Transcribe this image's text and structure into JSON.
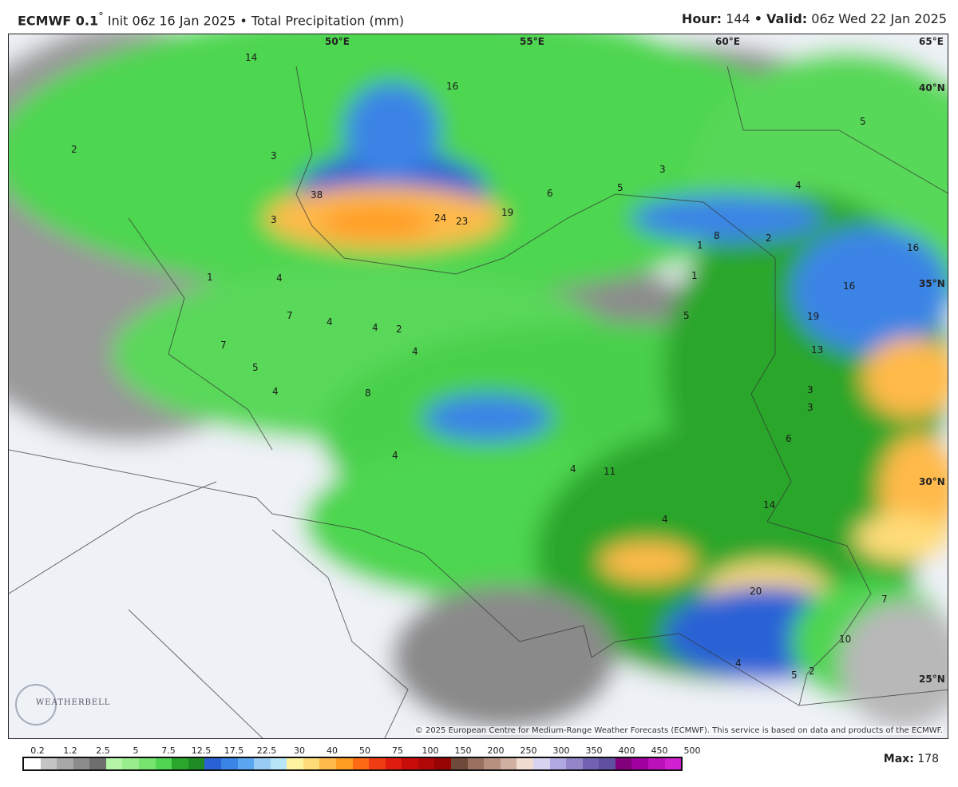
{
  "header": {
    "model": "ECMWF 0.1",
    "degree": "°",
    "init": "Init 06z 16 Jan 2025",
    "sep": "•",
    "product": "Total Precipitation (mm)",
    "hour_label": "Hour:",
    "hour": "144",
    "valid_label": "Valid:",
    "valid": "06z Wed 22 Jan 2025"
  },
  "map": {
    "lon_labels": [
      "50°E",
      "55°E",
      "60°E",
      "65°E"
    ],
    "lat_labels": [
      "40°N",
      "35°N",
      "30°N",
      "25°N"
    ],
    "values": [
      "2",
      "14",
      "3",
      "16",
      "4",
      "3",
      "38",
      "24",
      "23",
      "19",
      "6",
      "5",
      "3",
      "4",
      "8",
      "5",
      "1",
      "4",
      "7",
      "4",
      "2",
      "1",
      "7",
      "4",
      "8",
      "4",
      "5",
      "4",
      "2",
      "4",
      "11",
      "4",
      "6",
      "14",
      "3",
      "16",
      "16",
      "19",
      "13",
      "3",
      "5",
      "20",
      "10",
      "7",
      "4",
      "5",
      "2",
      "1"
    ],
    "copyright": "© 2025 European Centre for Medium-Range Weather Forecasts (ECMWF). This service is based on data and products of the ECMWF.",
    "logo": "WEATHERBELL"
  },
  "legend": {
    "ticks": [
      "0.2",
      "1.2",
      "2.5",
      "5",
      "7.5",
      "12.5",
      "17.5",
      "22.5",
      "30",
      "40",
      "50",
      "75",
      "100",
      "150",
      "200",
      "250",
      "300",
      "350",
      "400",
      "450",
      "500"
    ],
    "colors": [
      "#ffffff",
      "#c4c4c4",
      "#a8a8a8",
      "#8c8c8c",
      "#6e6e6e",
      "#b4f5a8",
      "#98ee8c",
      "#78e470",
      "#50d452",
      "#2aa62c",
      "#1e8c24",
      "#2a62d6",
      "#3a84e6",
      "#5aa6f0",
      "#98ccf4",
      "#b8e6f8",
      "#fff3a0",
      "#ffdc78",
      "#ffba4a",
      "#ff9c22",
      "#ff6a14",
      "#f03c12",
      "#e01c10",
      "#c80c0a",
      "#b00808",
      "#960404",
      "#6e4a3a",
      "#9a7060",
      "#b89080",
      "#d0b0a0",
      "#f0dcd0",
      "#d8d4f0",
      "#b0a8e0",
      "#9484c8",
      "#7262b2",
      "#6050a0",
      "#82007c",
      "#a000a0",
      "#b812b8",
      "#d020d0"
    ],
    "max_label": "Max:",
    "max": "178"
  }
}
